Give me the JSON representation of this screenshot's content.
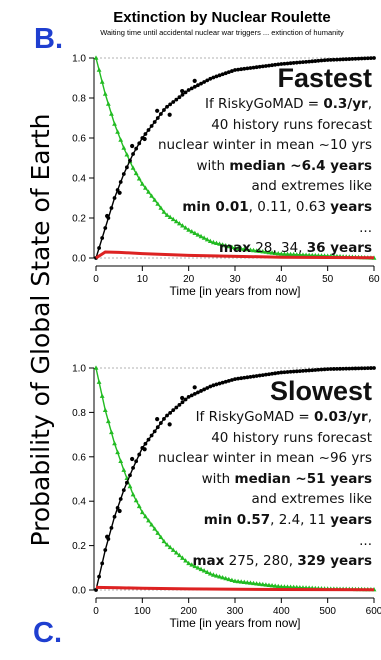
{
  "panel_labels": {
    "top": "B.",
    "bottom": "C."
  },
  "title": "Extinction by Nuclear Roulette",
  "subtitle": "Waiting time until accidental nuclear war triggers ... extinction of humanity",
  "ylabel": "Probability of Global State of Earth",
  "colors": {
    "label_blue": "#1f3fd0",
    "green": "#22bb22",
    "black": "#000000",
    "red": "#dd2222"
  },
  "chart_data": [
    {
      "type": "line",
      "panel": "B.",
      "xlabel": "Time [in years from now]",
      "xlim": [
        0,
        60
      ],
      "ylim": [
        0,
        1
      ],
      "xticks": [
        0,
        10,
        20,
        30,
        40,
        50,
        60
      ],
      "yticks": [
        0.0,
        0.2,
        0.4,
        0.6,
        0.8,
        1.0
      ],
      "ytick_labels": [
        "0.0",
        "0.2",
        "0.4",
        "0.6",
        "0.8",
        "1.0"
      ],
      "rate": 0.1,
      "series": [
        {
          "color": "green",
          "marker": "triangle",
          "x": [
            0,
            2,
            4,
            6,
            8,
            10,
            15,
            20,
            25,
            30,
            40,
            50,
            60
          ],
          "y": [
            1.0,
            0.82,
            0.67,
            0.55,
            0.45,
            0.37,
            0.22,
            0.14,
            0.08,
            0.05,
            0.02,
            0.01,
            0.0
          ]
        },
        {
          "color": "black",
          "marker": "circle",
          "x": [
            0,
            2,
            4,
            6,
            8,
            10,
            15,
            20,
            25,
            30,
            40,
            50,
            60
          ],
          "y": [
            0.0,
            0.15,
            0.3,
            0.42,
            0.52,
            0.6,
            0.75,
            0.84,
            0.9,
            0.94,
            0.97,
            0.99,
            1.0
          ]
        },
        {
          "color": "red",
          "marker": "none",
          "x": [
            0,
            2,
            5,
            10,
            20,
            40,
            60
          ],
          "y": [
            0.0,
            0.03,
            0.028,
            0.022,
            0.013,
            0.004,
            0.001
          ]
        }
      ],
      "annotation": {
        "heading": "Fastest",
        "lines": [
          [
            {
              "t": "If RiskyGoMAD = ",
              "b": false
            },
            {
              "t": "0.3/yr",
              "b": true
            },
            {
              "t": ",",
              "b": false
            }
          ],
          [
            {
              "t": "40 history runs forecast",
              "b": false
            }
          ],
          [
            {
              "t": "nuclear winter in mean ~10 yrs",
              "b": false
            }
          ],
          [
            {
              "t": "with ",
              "b": false
            },
            {
              "t": "median ~6.4 years",
              "b": true
            }
          ],
          [
            {
              "t": "and extremes like",
              "b": false
            }
          ],
          [
            {
              "t": "min 0.01",
              "b": true
            },
            {
              "t": ", 0.11, 0.63 ",
              "b": false
            },
            {
              "t": "years",
              "b": true
            }
          ],
          [
            {
              "t": "...",
              "b": false
            }
          ],
          [
            {
              "t": "max",
              "b": true
            },
            {
              "t": " 28, 34, ",
              "b": false
            },
            {
              "t": "36 years",
              "b": true
            }
          ]
        ]
      }
    },
    {
      "type": "line",
      "panel": "C.",
      "xlabel": "Time [in years from now]",
      "xlim": [
        0,
        600
      ],
      "ylim": [
        0,
        1
      ],
      "xticks": [
        0,
        100,
        200,
        300,
        400,
        500,
        600
      ],
      "yticks": [
        0.0,
        0.2,
        0.4,
        0.6,
        0.8,
        1.0
      ],
      "ytick_labels": [
        "0.0",
        "0.2",
        "0.4",
        "0.6",
        "0.8",
        "1.0"
      ],
      "rate": 0.0104,
      "series": [
        {
          "color": "green",
          "marker": "triangle",
          "x": [
            0,
            20,
            40,
            60,
            80,
            100,
            150,
            200,
            250,
            300,
            400,
            500,
            600
          ],
          "y": [
            1.0,
            0.81,
            0.66,
            0.54,
            0.43,
            0.35,
            0.21,
            0.12,
            0.07,
            0.04,
            0.015,
            0.005,
            0.002
          ]
        },
        {
          "color": "black",
          "marker": "circle",
          "x": [
            0,
            20,
            40,
            60,
            80,
            100,
            150,
            200,
            250,
            300,
            400,
            500,
            600
          ],
          "y": [
            0.0,
            0.18,
            0.33,
            0.45,
            0.55,
            0.64,
            0.78,
            0.87,
            0.92,
            0.95,
            0.98,
            0.995,
            1.0
          ]
        },
        {
          "color": "red",
          "marker": "none",
          "x": [
            0,
            50,
            100,
            200,
            400,
            600
          ],
          "y": [
            0.012,
            0.01,
            0.008,
            0.005,
            0.002,
            0.001
          ]
        }
      ],
      "annotation": {
        "heading": "Slowest",
        "lines": [
          [
            {
              "t": "If RiskyGoMAD = ",
              "b": false
            },
            {
              "t": "0.03/yr",
              "b": true
            },
            {
              "t": ",",
              "b": false
            }
          ],
          [
            {
              "t": "40 history runs forecast",
              "b": false
            }
          ],
          [
            {
              "t": "nuclear winter in mean ~96 yrs",
              "b": false
            }
          ],
          [
            {
              "t": "with ",
              "b": false
            },
            {
              "t": "median ~51 years",
              "b": true
            }
          ],
          [
            {
              "t": "and extremes like",
              "b": false
            }
          ],
          [
            {
              "t": "min 0.57",
              "b": true
            },
            {
              "t": ", 2.4, 11 ",
              "b": false
            },
            {
              "t": "years",
              "b": true
            }
          ],
          [
            {
              "t": "...",
              "b": false
            }
          ],
          [
            {
              "t": "max",
              "b": true
            },
            {
              "t": " 275, 280, ",
              "b": false
            },
            {
              "t": "329 years",
              "b": true
            }
          ]
        ]
      }
    }
  ]
}
